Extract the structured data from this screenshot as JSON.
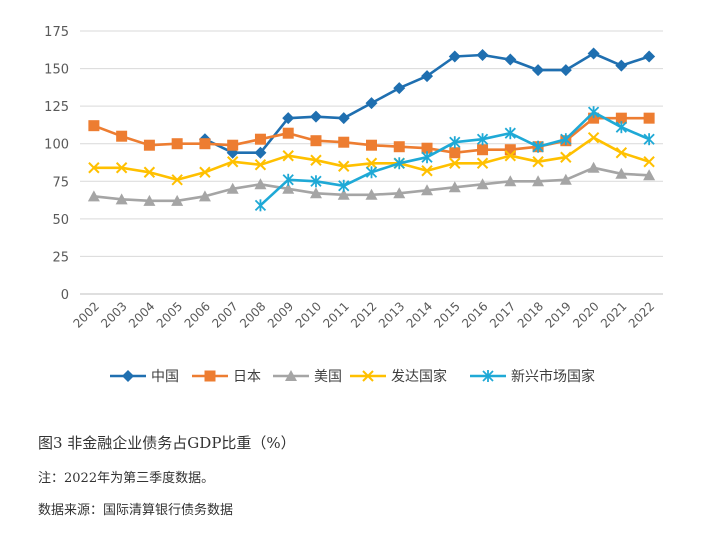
{
  "chart_data": {
    "type": "line",
    "title": "",
    "xlabel": "",
    "ylabel": "",
    "x": [
      "2002",
      "2003",
      "2004",
      "2005",
      "2006",
      "2007",
      "2008",
      "2009",
      "2010",
      "2011",
      "2012",
      "2013",
      "2014",
      "2015",
      "2016",
      "2017",
      "2018",
      "2019",
      "2020",
      "2021",
      "2022"
    ],
    "ylim": [
      0,
      175
    ],
    "yticks": [
      "0",
      "25",
      "50",
      "75",
      "100",
      "125",
      "150",
      "175"
    ],
    "grid": "horizontal",
    "legend_position": "bottom",
    "series": [
      {
        "name": "中国",
        "color": "#1F6FB0",
        "marker": "diamond",
        "values": [
          null,
          null,
          null,
          null,
          103,
          94,
          94,
          117,
          118,
          117,
          127,
          137,
          145,
          158,
          159,
          156,
          149,
          149,
          160,
          152,
          158
        ]
      },
      {
        "name": "日本",
        "color": "#ED7D31",
        "marker": "square",
        "values": [
          112,
          105,
          99,
          100,
          100,
          99,
          103,
          107,
          102,
          101,
          99,
          98,
          97,
          94,
          96,
          96,
          98,
          102,
          117,
          117,
          117
        ]
      },
      {
        "name": "美国",
        "color": "#A5A5A5",
        "marker": "triangle",
        "values": [
          65,
          63,
          62,
          62,
          65,
          70,
          73,
          70,
          67,
          66,
          66,
          67,
          69,
          71,
          73,
          75,
          75,
          76,
          84,
          80,
          79
        ]
      },
      {
        "name": "发达国家",
        "color": "#FFC000",
        "marker": "x",
        "values": [
          84,
          84,
          81,
          76,
          81,
          88,
          86,
          92,
          89,
          85,
          87,
          87,
          82,
          87,
          87,
          92,
          88,
          91,
          104,
          94,
          88
        ]
      },
      {
        "name": "新兴市场国家",
        "color": "#1FA9D6",
        "marker": "star",
        "values": [
          null,
          null,
          null,
          null,
          null,
          null,
          59,
          76,
          75,
          72,
          81,
          87,
          91,
          101,
          103,
          107,
          98,
          103,
          121,
          111,
          103
        ]
      }
    ]
  },
  "caption": {
    "title": "图3 非金融企业债务占GDP比重（%）",
    "note": "注：2022年为第三季度数据。",
    "source": "数据来源：国际清算银行债务数据"
  }
}
